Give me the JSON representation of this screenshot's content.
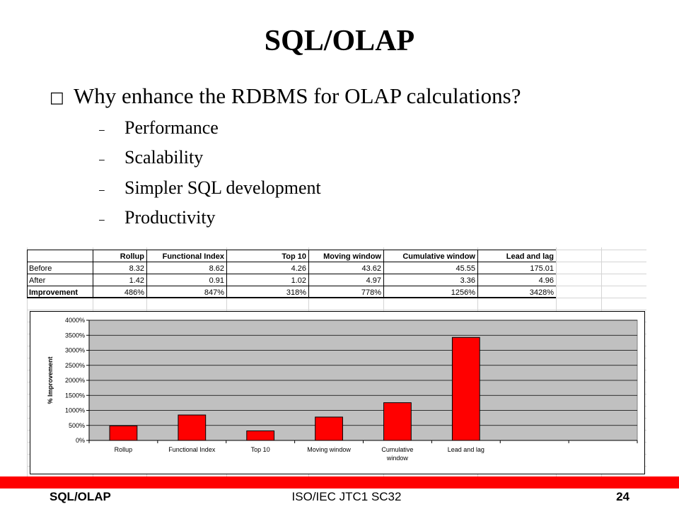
{
  "slide": {
    "title": "SQL/OLAP",
    "bullet_marker": "□",
    "bullet": "Why enhance the RDBMS for OLAP calculations?",
    "sub_marker": "–",
    "sub_items": [
      "Performance",
      "Scalability",
      "Simpler SQL development",
      "Productivity"
    ]
  },
  "table": {
    "headers": [
      "Rollup",
      "Functional Index",
      "Top 10",
      "Moving window",
      "Cumulative window",
      "Lead and lag"
    ],
    "rows": [
      {
        "label": "Before",
        "values": [
          "8.32",
          "8.62",
          "4.26",
          "43.62",
          "45.55",
          "175.01"
        ]
      },
      {
        "label": "After",
        "values": [
          "1.42",
          "0.91",
          "1.02",
          "4.97",
          "3.36",
          "4.96"
        ]
      },
      {
        "label": "Improvement",
        "values": [
          "486%",
          "847%",
          "318%",
          "778%",
          "1256%",
          "3428%"
        ]
      }
    ]
  },
  "chart_data": {
    "type": "bar",
    "categories": [
      "Rollup",
      "Functional Index",
      "Top 10",
      "Moving window",
      "Cumulative window",
      "Lead and lag"
    ],
    "category_lines": [
      [
        "Rollup"
      ],
      [
        "Functional Index"
      ],
      [
        "Top 10"
      ],
      [
        "Moving window"
      ],
      [
        "Cumulative",
        "window"
      ],
      [
        "Lead and lag"
      ]
    ],
    "values": [
      486,
      847,
      318,
      778,
      1256,
      3428
    ],
    "ylabel": "% Improvement",
    "ylim": [
      0,
      4000
    ],
    "yticks": [
      0,
      500,
      1000,
      1500,
      2000,
      2500,
      3000,
      3500,
      4000
    ],
    "ytick_labels": [
      "0%",
      "500%",
      "1000%",
      "1500%",
      "2000%",
      "2500%",
      "3000%",
      "3500%",
      "4000%"
    ],
    "slots": 8,
    "grid": true,
    "bar_color": "#ff0000",
    "plot_bg": "#c0c0c0"
  },
  "footer": {
    "left": "SQL/OLAP",
    "center": "ISO/IEC JTC1 SC32",
    "page": "24"
  }
}
